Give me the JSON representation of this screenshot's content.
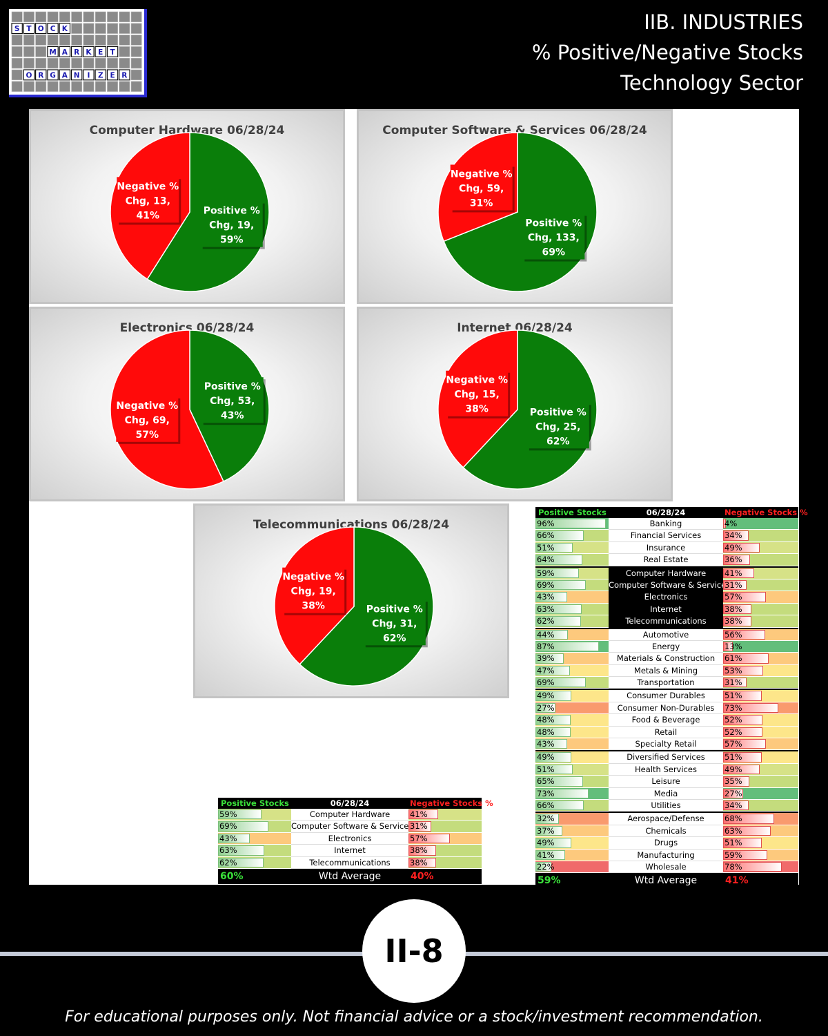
{
  "logo": {
    "rows": [
      {
        "words": []
      },
      {
        "words": [
          {
            "text": "STOCK",
            "col": 0
          }
        ]
      },
      {
        "words": []
      },
      {
        "words": [
          {
            "text": "MARKET",
            "col": 3
          }
        ]
      },
      {
        "words": []
      },
      {
        "words": [
          {
            "text": "ORGANIZER",
            "col": 1
          }
        ]
      },
      {
        "words": []
      }
    ]
  },
  "header": {
    "line1": "IIB. INDUSTRIES",
    "line2": "% Positive/Negative Stocks",
    "line3": "Technology Sector"
  },
  "colors": {
    "positive": "#0a7e0a",
    "negative": "#ff0a0a"
  },
  "chart_data": [
    {
      "type": "pie",
      "title": "Computer Hardware 06/28/24",
      "slices": [
        {
          "label": "Positive % Chg",
          "count": 19,
          "percent": 59
        },
        {
          "label": "Negative % Chg",
          "count": 13,
          "percent": 41
        }
      ],
      "slice_labels": [
        {
          "l1": "Positive %",
          "l2": "Chg, 19,",
          "l3": "59%"
        },
        {
          "l1": "Negative %",
          "l2": "Chg, 13,",
          "l3": "41%"
        }
      ]
    },
    {
      "type": "pie",
      "title": "Computer Software & Services 06/28/24",
      "slices": [
        {
          "label": "Positive % Chg",
          "count": 133,
          "percent": 69
        },
        {
          "label": "Negative % Chg",
          "count": 59,
          "percent": 31
        }
      ],
      "slice_labels": [
        {
          "l1": "Positive %",
          "l2": "Chg, 133,",
          "l3": "69%"
        },
        {
          "l1": "Negative %",
          "l2": "Chg, 59,",
          "l3": "31%"
        }
      ]
    },
    {
      "type": "pie",
      "title": "Electronics 06/28/24",
      "slices": [
        {
          "label": "Positive % Chg",
          "count": 53,
          "percent": 43
        },
        {
          "label": "Negative % Chg",
          "count": 69,
          "percent": 57
        }
      ],
      "slice_labels": [
        {
          "l1": "Positive %",
          "l2": "Chg, 53,",
          "l3": "43%"
        },
        {
          "l1": "Negative %",
          "l2": "Chg, 69,",
          "l3": "57%"
        }
      ]
    },
    {
      "type": "pie",
      "title": "Internet 06/28/24",
      "slices": [
        {
          "label": "Positive % Chg",
          "count": 25,
          "percent": 62
        },
        {
          "label": "Negative % Chg",
          "count": 15,
          "percent": 38
        }
      ],
      "slice_labels": [
        {
          "l1": "Positive %",
          "l2": "Chg, 25,",
          "l3": "62%"
        },
        {
          "l1": "Negative %",
          "l2": "Chg, 15,",
          "l3": "38%"
        }
      ]
    },
    {
      "type": "pie",
      "title": "Telecommunications 06/28/24",
      "slices": [
        {
          "label": "Positive % Chg",
          "count": 31,
          "percent": 62
        },
        {
          "label": "Negative % Chg",
          "count": 19,
          "percent": 38
        }
      ],
      "slice_labels": [
        {
          "l1": "Positive %",
          "l2": "Chg, 31,",
          "l3": "62%"
        },
        {
          "l1": "Negative %",
          "l2": "Chg, 19,",
          "l3": "38%"
        }
      ]
    },
    {
      "type": "table",
      "title": "06/28/24",
      "headers": {
        "positive": "Positive Stocks %",
        "date": "06/28/24",
        "negative": "Negative Stocks %"
      },
      "rows": [
        {
          "name": "Computer Hardware",
          "pos": "59%",
          "neg": "41%"
        },
        {
          "name": "Computer Software & Services",
          "pos": "69%",
          "neg": "31%"
        },
        {
          "name": "Electronics",
          "pos": "43%",
          "neg": "57%"
        },
        {
          "name": "Internet",
          "pos": "63%",
          "neg": "38%"
        },
        {
          "name": "Telecommunications",
          "pos": "62%",
          "neg": "38%"
        }
      ],
      "footer": {
        "pos": "60%",
        "label": "Wtd Average",
        "neg": "40%"
      }
    },
    {
      "type": "table",
      "title": "06/28/24",
      "headers": {
        "positive": "Positive Stocks %",
        "date": "06/28/24",
        "negative": "Negative Stocks %"
      },
      "rows": [
        {
          "name": "Banking",
          "pos": "96%",
          "neg": "4%",
          "group": 1
        },
        {
          "name": "Financial Services",
          "pos": "66%",
          "neg": "34%",
          "group": 1
        },
        {
          "name": "Insurance",
          "pos": "51%",
          "neg": "49%",
          "group": 1
        },
        {
          "name": "Real Estate",
          "pos": "64%",
          "neg": "36%",
          "group": 1
        },
        {
          "name": "Computer Hardware",
          "pos": "59%",
          "neg": "41%",
          "group": 2,
          "highlight": true
        },
        {
          "name": "Computer Software & Services",
          "pos": "69%",
          "neg": "31%",
          "group": 2,
          "highlight": true
        },
        {
          "name": "Electronics",
          "pos": "43%",
          "neg": "57%",
          "group": 2,
          "highlight": true
        },
        {
          "name": "Internet",
          "pos": "63%",
          "neg": "38%",
          "group": 2,
          "highlight": true
        },
        {
          "name": "Telecommunications",
          "pos": "62%",
          "neg": "38%",
          "group": 2,
          "highlight": true
        },
        {
          "name": "Automotive",
          "pos": "44%",
          "neg": "56%",
          "group": 3
        },
        {
          "name": "Energy",
          "pos": "87%",
          "neg": "13%",
          "group": 3
        },
        {
          "name": "Materials & Construction",
          "pos": "39%",
          "neg": "61%",
          "group": 3
        },
        {
          "name": "Metals & Mining",
          "pos": "47%",
          "neg": "53%",
          "group": 3
        },
        {
          "name": "Transportation",
          "pos": "69%",
          "neg": "31%",
          "group": 3
        },
        {
          "name": "Consumer Durables",
          "pos": "49%",
          "neg": "51%",
          "group": 4
        },
        {
          "name": "Consumer Non-Durables",
          "pos": "27%",
          "neg": "73%",
          "group": 4
        },
        {
          "name": "Food & Beverage",
          "pos": "48%",
          "neg": "52%",
          "group": 4
        },
        {
          "name": "Retail",
          "pos": "48%",
          "neg": "52%",
          "group": 4
        },
        {
          "name": "Specialty Retail",
          "pos": "43%",
          "neg": "57%",
          "group": 4
        },
        {
          "name": "Diversified Services",
          "pos": "49%",
          "neg": "51%",
          "group": 5
        },
        {
          "name": "Health Services",
          "pos": "51%",
          "neg": "49%",
          "group": 5
        },
        {
          "name": "Leisure",
          "pos": "65%",
          "neg": "35%",
          "group": 5
        },
        {
          "name": "Media",
          "pos": "73%",
          "neg": "27%",
          "group": 5
        },
        {
          "name": "Utilities",
          "pos": "66%",
          "neg": "34%",
          "group": 5
        },
        {
          "name": "Aerospace/Defense",
          "pos": "32%",
          "neg": "68%",
          "group": 6
        },
        {
          "name": "Chemicals",
          "pos": "37%",
          "neg": "63%",
          "group": 6
        },
        {
          "name": "Drugs",
          "pos": "49%",
          "neg": "51%",
          "group": 6
        },
        {
          "name": "Manufacturing",
          "pos": "41%",
          "neg": "59%",
          "group": 6
        },
        {
          "name": "Wholesale",
          "pos": "22%",
          "neg": "78%",
          "group": 6
        }
      ],
      "footer": {
        "pos": "59%",
        "label": "Wtd Average",
        "neg": "41%"
      }
    }
  ],
  "page_badge": "II-8",
  "footer_note": "For educational purposes only. Not financial advice or a stock/investment recommendation."
}
